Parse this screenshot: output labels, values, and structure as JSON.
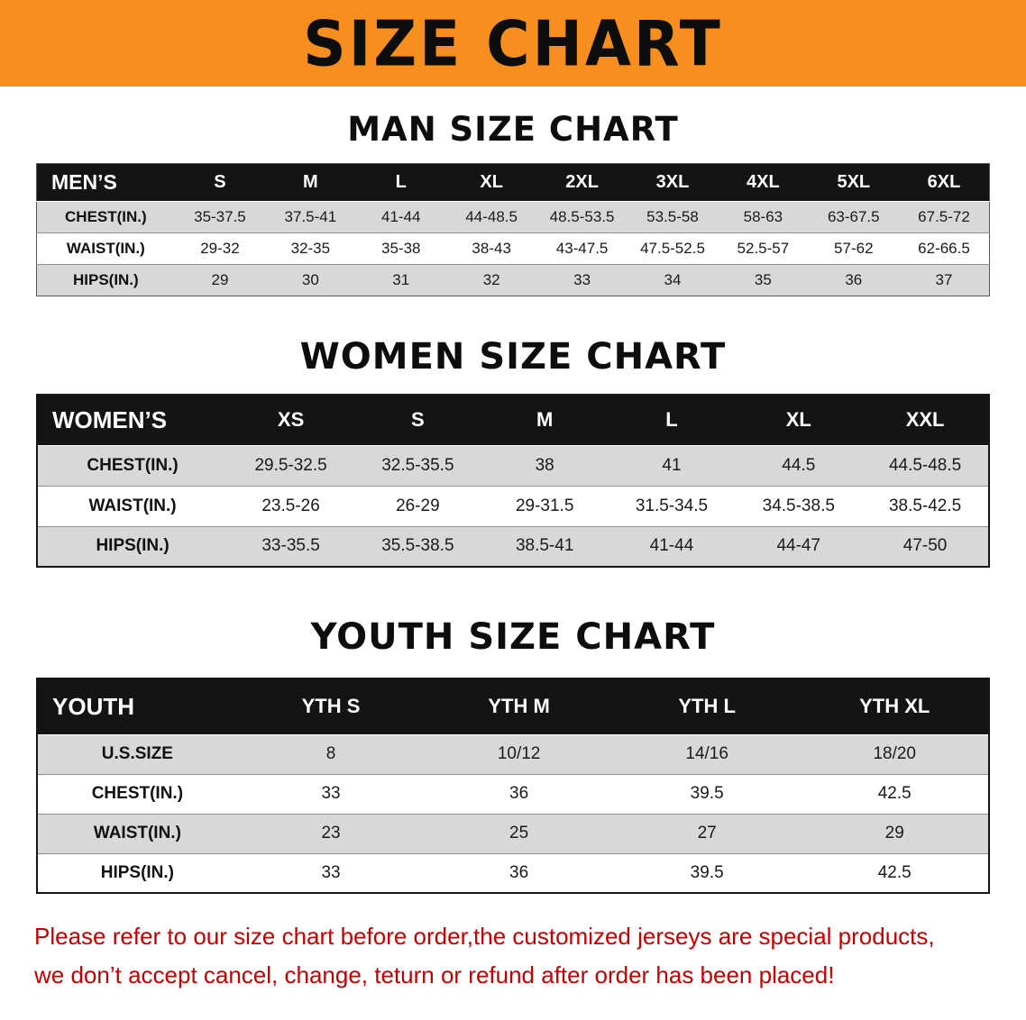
{
  "banner": {
    "title": "SIZE CHART"
  },
  "colors": {
    "banner_bg": "#F68F1E",
    "table_header_bg": "#141414",
    "row_stripe": "#D8D8D8",
    "footer_text": "#C00000"
  },
  "chart_data": [
    {
      "type": "table",
      "title": "MAN SIZE CHART",
      "corner_label": "MEN’S",
      "columns": [
        "S",
        "M",
        "L",
        "XL",
        "2XL",
        "3XL",
        "4XL",
        "5XL",
        "6XL"
      ],
      "rows": [
        {
          "label": "CHEST(IN.)",
          "values": [
            "35-37.5",
            "37.5-41",
            "41-44",
            "44-48.5",
            "48.5-53.5",
            "53.5-58",
            "58-63",
            "63-67.5",
            "67.5-72"
          ]
        },
        {
          "label": "WAIST(IN.)",
          "values": [
            "29-32",
            "32-35",
            "35-38",
            "38-43",
            "43-47.5",
            "47.5-52.5",
            "52.5-57",
            "57-62",
            "62-66.5"
          ]
        },
        {
          "label": "HIPS(IN.)",
          "values": [
            "29",
            "30",
            "31",
            "32",
            "33",
            "34",
            "35",
            "36",
            "37"
          ]
        }
      ]
    },
    {
      "type": "table",
      "title": "WOMEN SIZE CHART",
      "corner_label": "WOMEN’S",
      "columns": [
        "XS",
        "S",
        "M",
        "L",
        "XL",
        "XXL"
      ],
      "rows": [
        {
          "label": "CHEST(IN.)",
          "values": [
            "29.5-32.5",
            "32.5-35.5",
            "38",
            "41",
            "44.5",
            "44.5-48.5"
          ]
        },
        {
          "label": "WAIST(IN.)",
          "values": [
            "23.5-26",
            "26-29",
            "29-31.5",
            "31.5-34.5",
            "34.5-38.5",
            "38.5-42.5"
          ]
        },
        {
          "label": "HIPS(IN.)",
          "values": [
            "33-35.5",
            "35.5-38.5",
            "38.5-41",
            "41-44",
            "44-47",
            "47-50"
          ]
        }
      ]
    },
    {
      "type": "table",
      "title": "YOUTH SIZE CHART",
      "corner_label": "YOUTH",
      "columns": [
        "YTH S",
        "YTH M",
        "YTH L",
        "YTH XL"
      ],
      "rows": [
        {
          "label": "U.S.SIZE",
          "values": [
            "8",
            "10/12",
            "14/16",
            "18/20"
          ]
        },
        {
          "label": "CHEST(IN.)",
          "values": [
            "33",
            "36",
            "39.5",
            "42.5"
          ]
        },
        {
          "label": "WAIST(IN.)",
          "values": [
            "23",
            "25",
            "27",
            "29"
          ]
        },
        {
          "label": "HIPS(IN.)",
          "values": [
            "33",
            "36",
            "39.5",
            "42.5"
          ]
        }
      ]
    }
  ],
  "footer": {
    "lines": [
      "Please refer to our size chart before order,the customized jerseys are special products,",
      "we don’t accept cancel, change, teturn or refund after order has been placed!"
    ]
  }
}
